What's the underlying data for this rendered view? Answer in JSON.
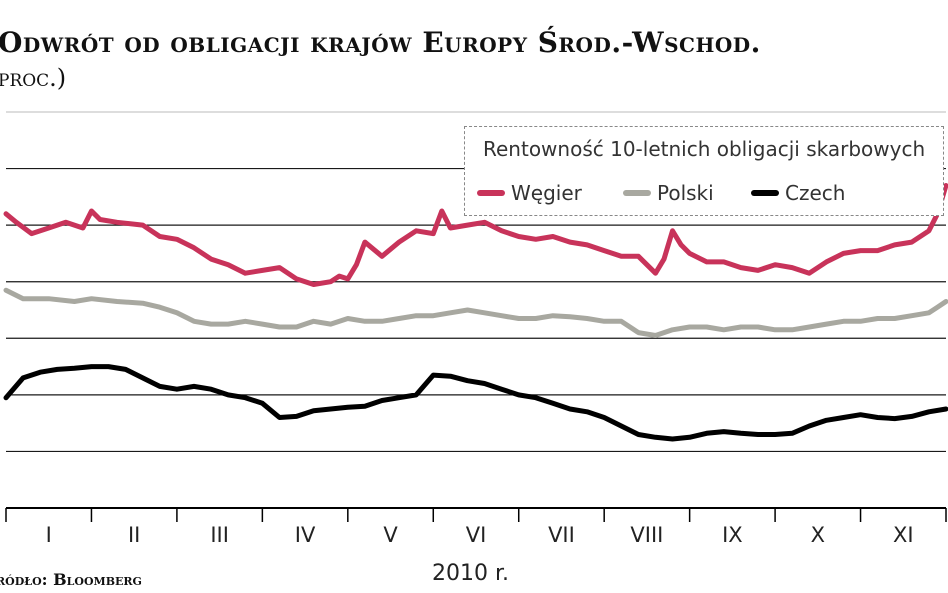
{
  "header": {
    "title": "Odwrót od obligacji krajów Europy Środ.-Wschod.",
    "subtitle": "proc.)"
  },
  "footer": {
    "source": "ródło: Bloomberg",
    "year": "2010 r."
  },
  "colors": {
    "hungary": "#c8335a",
    "poland": "#a8a8a0",
    "czech": "#000000",
    "grid": "#1a1a1a"
  },
  "chart_data": {
    "type": "line",
    "title": "Odwrót od obligacji krajów Europy Środ.-Wschod.",
    "legend_title": "Rentowność 10-letnich obligacji skarbowych",
    "legend_position": "top-right",
    "grid": true,
    "xlabel": "2010 r.",
    "categories": [
      "I",
      "II",
      "III",
      "IV",
      "V",
      "VI",
      "VII",
      "VIII",
      "IX",
      "X",
      "XI"
    ],
    "xlim": [
      0,
      11
    ],
    "ylim": [
      2,
      9
    ],
    "series": [
      {
        "name": "Węgier",
        "x": [
          0,
          0.12,
          0.3,
          0.5,
          0.7,
          0.9,
          1.0,
          1.1,
          1.3,
          1.6,
          1.8,
          2.0,
          2.2,
          2.4,
          2.6,
          2.8,
          3.0,
          3.2,
          3.4,
          3.6,
          3.8,
          3.9,
          4.0,
          4.1,
          4.2,
          4.4,
          4.6,
          4.8,
          5.0,
          5.1,
          5.2,
          5.4,
          5.6,
          5.8,
          6.0,
          6.2,
          6.4,
          6.6,
          6.8,
          7.0,
          7.2,
          7.4,
          7.6,
          7.7,
          7.8,
          7.9,
          8.0,
          8.2,
          8.4,
          8.6,
          8.8,
          9.0,
          9.2,
          9.4,
          9.6,
          9.8,
          10.0,
          10.2,
          10.4,
          10.6,
          10.8,
          10.9,
          11.0
        ],
        "values": [
          7.2,
          7.05,
          6.85,
          6.95,
          7.05,
          6.95,
          7.25,
          7.1,
          7.05,
          7.0,
          6.8,
          6.75,
          6.6,
          6.4,
          6.3,
          6.15,
          6.2,
          6.25,
          6.05,
          5.95,
          6.0,
          6.1,
          6.05,
          6.3,
          6.7,
          6.45,
          6.7,
          6.9,
          6.85,
          7.25,
          6.95,
          7.0,
          7.05,
          6.9,
          6.8,
          6.75,
          6.8,
          6.7,
          6.65,
          6.55,
          6.45,
          6.45,
          6.15,
          6.4,
          6.9,
          6.65,
          6.5,
          6.35,
          6.35,
          6.25,
          6.2,
          6.3,
          6.25,
          6.15,
          6.35,
          6.5,
          6.55,
          6.55,
          6.65,
          6.7,
          6.9,
          7.2,
          7.7
        ]
      },
      {
        "name": "Polski",
        "x": [
          0,
          0.2,
          0.5,
          0.8,
          1.0,
          1.3,
          1.6,
          1.8,
          2.0,
          2.2,
          2.4,
          2.6,
          2.8,
          3.0,
          3.2,
          3.4,
          3.6,
          3.8,
          4.0,
          4.2,
          4.4,
          4.6,
          4.8,
          5.0,
          5.2,
          5.4,
          5.6,
          5.8,
          6.0,
          6.2,
          6.4,
          6.6,
          6.8,
          7.0,
          7.2,
          7.4,
          7.6,
          7.7,
          7.8,
          8.0,
          8.2,
          8.4,
          8.6,
          8.8,
          9.0,
          9.2,
          9.4,
          9.6,
          9.8,
          10.0,
          10.2,
          10.4,
          10.6,
          10.8,
          10.9,
          11.0
        ],
        "values": [
          5.85,
          5.7,
          5.7,
          5.65,
          5.7,
          5.65,
          5.62,
          5.55,
          5.45,
          5.3,
          5.25,
          5.25,
          5.3,
          5.25,
          5.2,
          5.2,
          5.3,
          5.25,
          5.35,
          5.3,
          5.3,
          5.35,
          5.4,
          5.4,
          5.45,
          5.5,
          5.45,
          5.4,
          5.35,
          5.35,
          5.4,
          5.38,
          5.35,
          5.3,
          5.3,
          5.1,
          5.05,
          5.1,
          5.15,
          5.2,
          5.2,
          5.15,
          5.2,
          5.2,
          5.15,
          5.15,
          5.2,
          5.25,
          5.3,
          5.3,
          5.35,
          5.35,
          5.4,
          5.45,
          5.55,
          5.65
        ]
      },
      {
        "name": "Czech",
        "x": [
          0,
          0.2,
          0.4,
          0.6,
          0.8,
          1.0,
          1.2,
          1.4,
          1.6,
          1.8,
          2.0,
          2.2,
          2.4,
          2.6,
          2.8,
          3.0,
          3.2,
          3.4,
          3.6,
          3.8,
          4.0,
          4.2,
          4.4,
          4.6,
          4.8,
          5.0,
          5.2,
          5.4,
          5.6,
          5.8,
          6.0,
          6.2,
          6.4,
          6.6,
          6.8,
          7.0,
          7.2,
          7.4,
          7.6,
          7.8,
          8.0,
          8.2,
          8.4,
          8.6,
          8.8,
          9.0,
          9.2,
          9.4,
          9.6,
          9.8,
          10.0,
          10.2,
          10.4,
          10.6,
          10.8,
          11.0
        ],
        "values": [
          3.95,
          4.3,
          4.4,
          4.45,
          4.47,
          4.5,
          4.5,
          4.45,
          4.3,
          4.15,
          4.1,
          4.15,
          4.1,
          4.0,
          3.95,
          3.85,
          3.6,
          3.62,
          3.72,
          3.75,
          3.78,
          3.8,
          3.9,
          3.95,
          4.0,
          4.35,
          4.33,
          4.25,
          4.2,
          4.1,
          4.0,
          3.95,
          3.85,
          3.75,
          3.7,
          3.6,
          3.45,
          3.3,
          3.25,
          3.22,
          3.25,
          3.32,
          3.35,
          3.32,
          3.3,
          3.3,
          3.32,
          3.45,
          3.55,
          3.6,
          3.65,
          3.6,
          3.58,
          3.62,
          3.7,
          3.75
        ]
      }
    ]
  }
}
